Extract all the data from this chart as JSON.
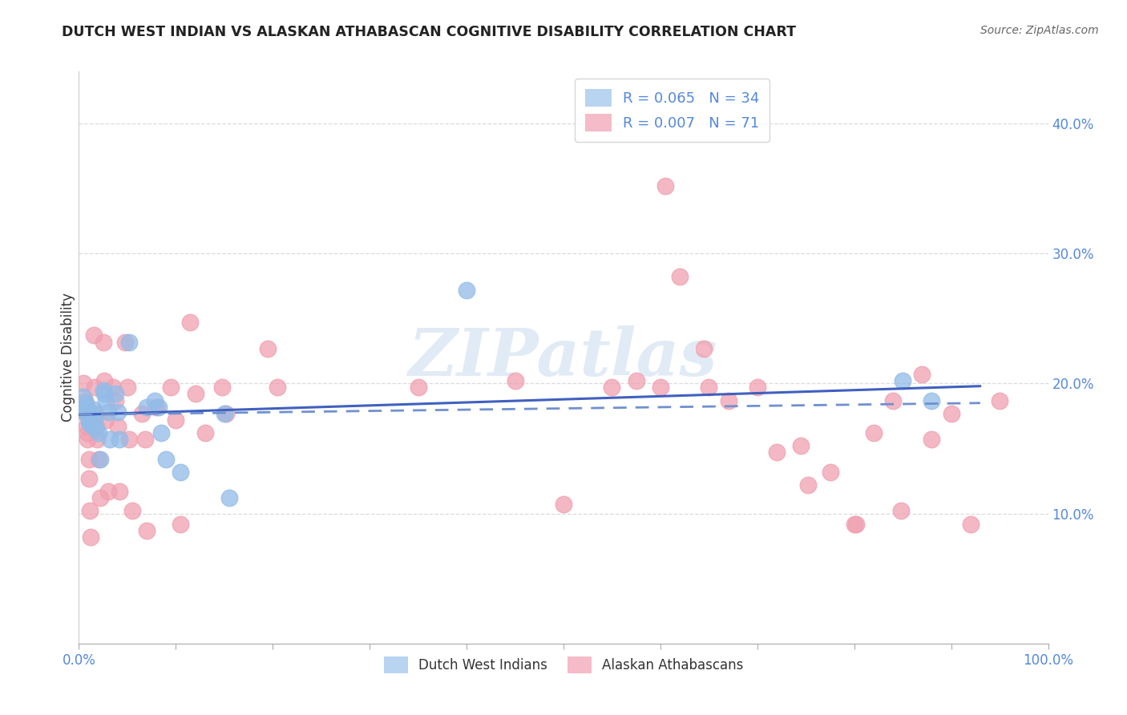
{
  "title": "DUTCH WEST INDIAN VS ALASKAN ATHABASCAN COGNITIVE DISABILITY CORRELATION CHART",
  "source": "Source: ZipAtlas.com",
  "ylabel": "Cognitive Disability",
  "y_ticks": [
    0.1,
    0.2,
    0.3,
    0.4
  ],
  "y_tick_labels": [
    "10.0%",
    "20.0%",
    "30.0%",
    "40.0%"
  ],
  "xlim": [
    0.0,
    1.0
  ],
  "ylim": [
    0.0,
    0.44
  ],
  "legend_labels_bottom": [
    "Dutch West Indians",
    "Alaskan Athabascans"
  ],
  "blue_color": "#92bce8",
  "pink_color": "#f0a0b0",
  "blue_line_color": "#4060c0",
  "pink_line_color": "#e06878",
  "blue_trend_color": "#7090d0",
  "watermark": "ZIPatlas",
  "background_color": "#ffffff",
  "grid_color": "#d8d8d8",
  "blue_x": [
    0.005,
    0.007,
    0.008,
    0.008,
    0.009,
    0.01,
    0.01,
    0.012,
    0.015,
    0.015,
    0.016,
    0.018,
    0.02,
    0.022,
    0.025,
    0.026,
    0.028,
    0.03,
    0.032,
    0.038,
    0.04,
    0.042,
    0.052,
    0.07,
    0.078,
    0.082,
    0.085,
    0.09,
    0.105,
    0.15,
    0.155,
    0.4,
    0.85,
    0.88
  ],
  "blue_y": [
    0.19,
    0.185,
    0.182,
    0.178,
    0.176,
    0.172,
    0.17,
    0.168,
    0.18,
    0.176,
    0.172,
    0.165,
    0.162,
    0.142,
    0.195,
    0.192,
    0.186,
    0.178,
    0.157,
    0.192,
    0.178,
    0.157,
    0.232,
    0.182,
    0.187,
    0.182,
    0.162,
    0.142,
    0.132,
    0.177,
    0.112,
    0.272,
    0.202,
    0.187
  ],
  "pink_x": [
    0.005,
    0.006,
    0.007,
    0.008,
    0.008,
    0.009,
    0.009,
    0.01,
    0.01,
    0.011,
    0.012,
    0.015,
    0.016,
    0.017,
    0.018,
    0.019,
    0.02,
    0.022,
    0.025,
    0.026,
    0.028,
    0.03,
    0.035,
    0.038,
    0.04,
    0.042,
    0.048,
    0.05,
    0.052,
    0.055,
    0.065,
    0.068,
    0.07,
    0.08,
    0.095,
    0.1,
    0.105,
    0.115,
    0.12,
    0.13,
    0.148,
    0.152,
    0.195,
    0.205,
    0.35,
    0.45,
    0.5,
    0.55,
    0.575,
    0.6,
    0.605,
    0.62,
    0.645,
    0.65,
    0.67,
    0.7,
    0.72,
    0.745,
    0.752,
    0.775,
    0.8,
    0.802,
    0.82,
    0.84,
    0.848,
    0.87,
    0.88,
    0.9,
    0.92,
    0.95
  ],
  "pink_y": [
    0.2,
    0.187,
    0.177,
    0.177,
    0.167,
    0.162,
    0.157,
    0.142,
    0.127,
    0.102,
    0.082,
    0.237,
    0.197,
    0.177,
    0.167,
    0.157,
    0.142,
    0.112,
    0.232,
    0.202,
    0.172,
    0.117,
    0.197,
    0.187,
    0.167,
    0.117,
    0.232,
    0.197,
    0.157,
    0.102,
    0.177,
    0.157,
    0.087,
    0.182,
    0.197,
    0.172,
    0.092,
    0.247,
    0.192,
    0.162,
    0.197,
    0.177,
    0.227,
    0.197,
    0.197,
    0.202,
    0.107,
    0.197,
    0.202,
    0.197,
    0.352,
    0.282,
    0.227,
    0.197,
    0.187,
    0.197,
    0.147,
    0.152,
    0.122,
    0.132,
    0.092,
    0.092,
    0.162,
    0.187,
    0.102,
    0.207,
    0.157,
    0.177,
    0.092,
    0.187
  ],
  "blue_trend_x": [
    0.0,
    0.93
  ],
  "blue_trend_y": [
    0.176,
    0.198
  ],
  "pink_trend_x": [
    0.0,
    0.93
  ],
  "pink_trend_y": [
    0.176,
    0.185
  ]
}
